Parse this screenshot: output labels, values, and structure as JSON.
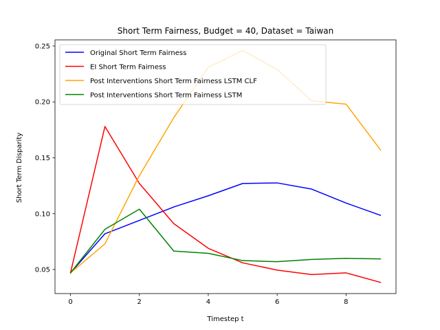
{
  "chart_data": {
    "type": "line",
    "title": "Short Term Fairness, Budget = 40, Dataset = Taiwan",
    "xlabel": "Timestep t",
    "ylabel": "Short Term Disparity",
    "x": [
      0,
      1,
      2,
      3,
      4,
      5,
      6,
      7,
      8,
      9
    ],
    "xlim": [
      -0.45,
      9.45
    ],
    "ylim": [
      0.0285,
      0.2555
    ],
    "xticks": [
      0,
      2,
      4,
      6,
      8
    ],
    "xtick_labels": [
      "0",
      "2",
      "4",
      "6",
      "8"
    ],
    "yticks": [
      0.05,
      0.1,
      0.15,
      0.2,
      0.25
    ],
    "ytick_labels": [
      "0.05",
      "0.10",
      "0.15",
      "0.20",
      "0.25"
    ],
    "grid": false,
    "legend_position": "upper-left",
    "series": [
      {
        "name": "Original Short Term Fairness",
        "color": "#0000ff",
        "values": [
          0.047,
          0.082,
          0.094,
          0.106,
          0.116,
          0.127,
          0.1275,
          0.122,
          0.1095,
          0.0985
        ]
      },
      {
        "name": "EI Short Term Fairness",
        "color": "#ff0000",
        "values": [
          0.047,
          0.178,
          0.127,
          0.091,
          0.069,
          0.056,
          0.0495,
          0.0455,
          0.047,
          0.0385
        ]
      },
      {
        "name": "Post Interventions Short Term Fairness LSTM CLF",
        "color": "#ffa500",
        "values": [
          0.047,
          0.073,
          0.134,
          0.186,
          0.231,
          0.246,
          0.229,
          0.201,
          0.198,
          0.157
        ]
      },
      {
        "name": "Post Interventions Short Term Fairness LSTM",
        "color": "#008000",
        "values": [
          0.047,
          0.086,
          0.104,
          0.0665,
          0.0645,
          0.058,
          0.057,
          0.059,
          0.06,
          0.0595
        ]
      }
    ]
  }
}
